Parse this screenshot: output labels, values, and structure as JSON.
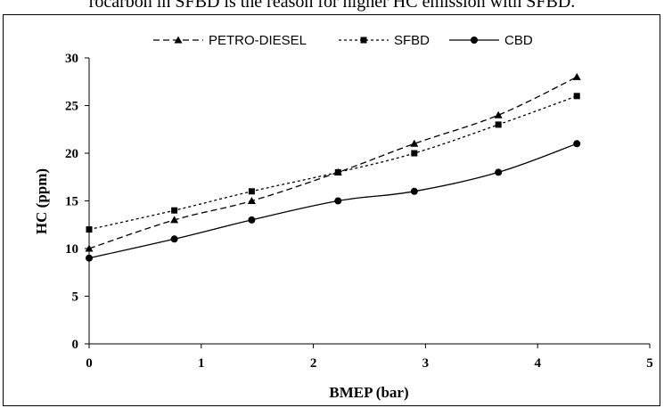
{
  "caption": {
    "text": "rocarbon in SFBD is the reason for higher HC emission with SFBD."
  },
  "chart_data": {
    "type": "line",
    "title": "",
    "xlabel": "BMEP (bar)",
    "ylabel": "HC (ppm)",
    "xlim": [
      0,
      5
    ],
    "ylim": [
      0,
      30
    ],
    "xticks": [
      0,
      1,
      2,
      3,
      4,
      5
    ],
    "yticks": [
      0,
      5,
      10,
      15,
      20,
      25,
      30
    ],
    "xtick_labels": [
      "0",
      "1",
      "2",
      "3",
      "4",
      "5"
    ],
    "ytick_labels": [
      "0",
      "5",
      "10",
      "15",
      "20",
      "25",
      "30"
    ],
    "grid": false,
    "legend_position": "top",
    "series": [
      {
        "name": "PETRO-DIESEL",
        "x": [
          0,
          0.76,
          1.45,
          2.22,
          2.9,
          3.65,
          4.35
        ],
        "y": [
          10,
          13,
          15,
          18,
          21,
          24,
          28
        ],
        "marker": "triangle",
        "line_style": "dashed",
        "color": "#000000"
      },
      {
        "name": "SFBD",
        "x": [
          0,
          0.76,
          1.45,
          2.22,
          2.9,
          3.65,
          4.35
        ],
        "y": [
          12,
          14,
          16,
          18,
          20,
          23,
          26
        ],
        "marker": "square",
        "line_style": "dotted",
        "color": "#000000"
      },
      {
        "name": "CBD",
        "x": [
          0,
          0.76,
          1.45,
          2.22,
          2.9,
          3.65,
          4.35
        ],
        "y": [
          9,
          11,
          13,
          15,
          16,
          18,
          21
        ],
        "marker": "circle",
        "line_style": "solid",
        "color": "#000000"
      }
    ]
  }
}
